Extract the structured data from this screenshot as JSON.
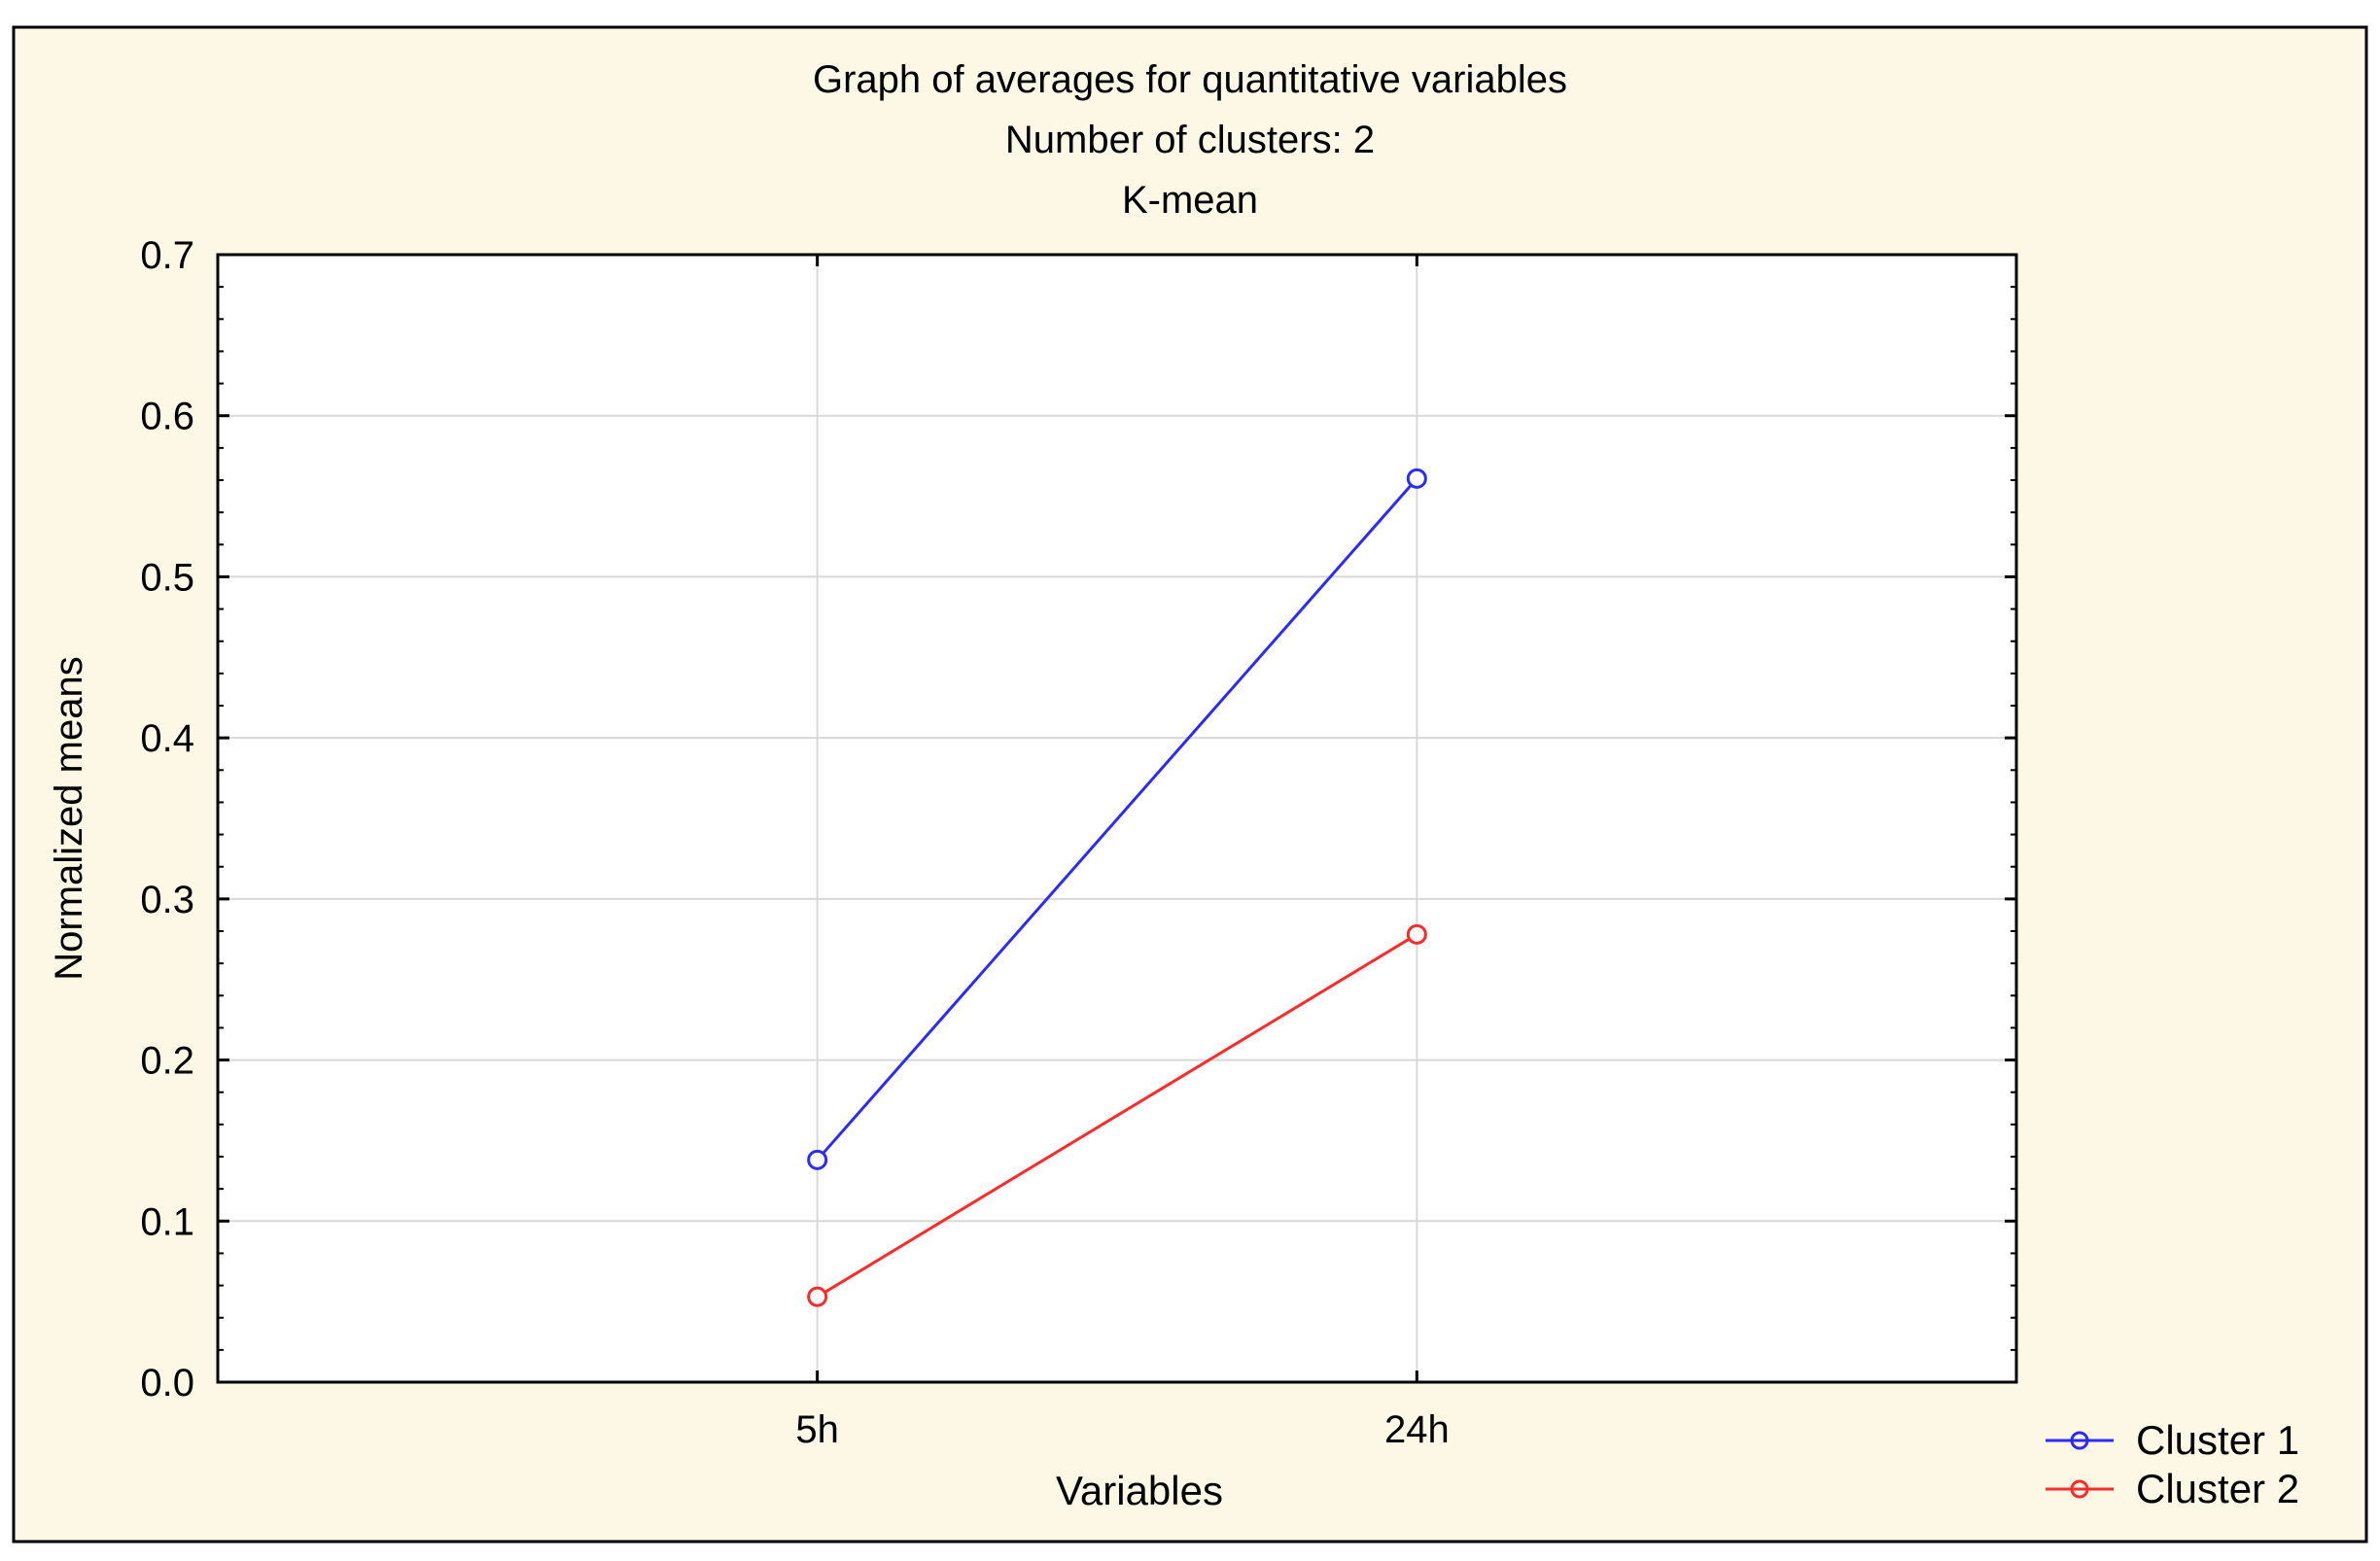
{
  "colors": {
    "background": "#FDF8E6",
    "plot_background": "#FFFFFF",
    "grid": "#D8D8D8",
    "frame": "#000000"
  },
  "chart_data": {
    "type": "line",
    "title": "Graph of averages for quantitative variables",
    "subtitle_lines": [
      "Number of clusters: 2",
      "K-mean"
    ],
    "xlabel": "Variables",
    "ylabel": "Normalized means",
    "categories": [
      "5h",
      "24h"
    ],
    "xlim_slots": 3,
    "ylim": [
      0.0,
      0.7
    ],
    "yticks": [
      "0.0",
      "0.1",
      "0.2",
      "0.3",
      "0.4",
      "0.5",
      "0.6",
      "0.7"
    ],
    "grid": true,
    "legend_position": "bottom-right",
    "series": [
      {
        "name": "Cluster 1",
        "values": [
          0.138,
          0.561
        ],
        "color": "#2B2BFF",
        "marker": "circle"
      },
      {
        "name": "Cluster 2",
        "values": [
          0.053,
          0.278
        ],
        "color": "#FF2B2B",
        "marker": "circle"
      }
    ]
  }
}
